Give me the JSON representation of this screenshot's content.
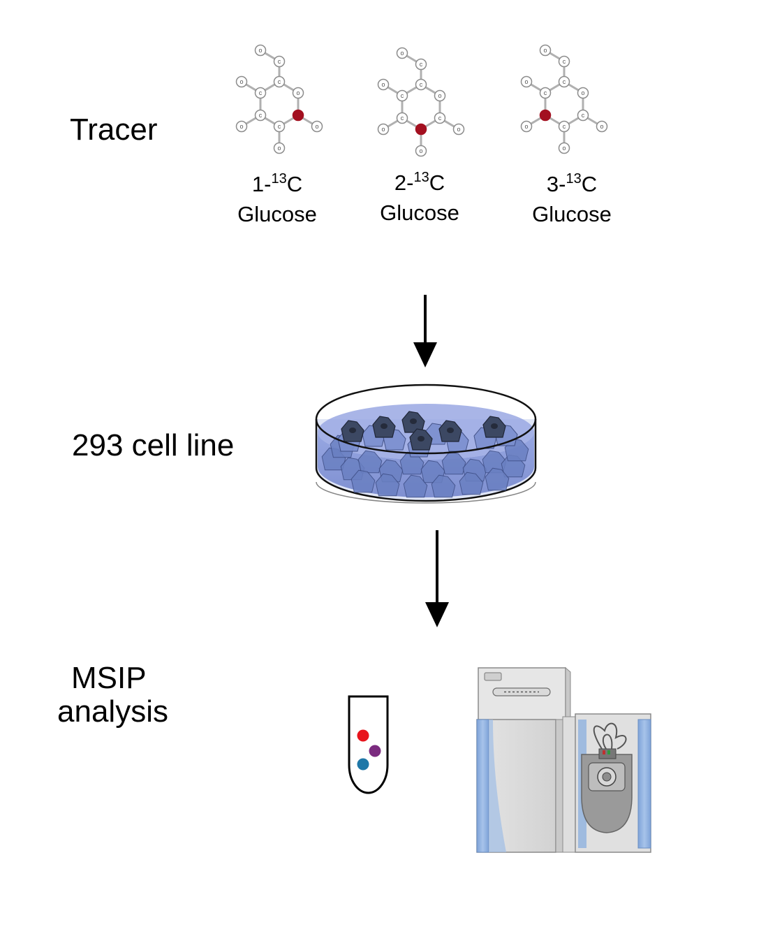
{
  "steps": {
    "tracer": "Tracer",
    "cells": "293 cell line",
    "analysis_line1": "MSIP",
    "analysis_line2": "analysis"
  },
  "atoms": {
    "carbon": "C",
    "oxygen": "O"
  },
  "tracers": [
    {
      "prefix": "1-",
      "isotope": "13",
      "element": "C",
      "name": "Glucose",
      "labeled_position": 1
    },
    {
      "prefix": "2-",
      "isotope": "13",
      "element": "C",
      "name": "Glucose",
      "labeled_position": 2
    },
    {
      "prefix": "3-",
      "isotope": "13",
      "element": "C",
      "name": "Glucose",
      "labeled_position": 3
    }
  ],
  "colors": {
    "label_atom": "#a31020",
    "bond": "#b0b0b0",
    "medium": "#7f92d6",
    "cell_dark": "#3c4863",
    "cell_light": "#6a80c2",
    "particle_red": "#e8141c",
    "particle_purple": "#7b2b7f",
    "particle_teal": "#1f78a8",
    "instrument_blue": "#8fb2df"
  },
  "icons": [
    "glucose-molecule-icon",
    "petri-dish-icon",
    "sample-tube-icon",
    "mass-spectrometer-icon",
    "arrow-down-icon"
  ]
}
